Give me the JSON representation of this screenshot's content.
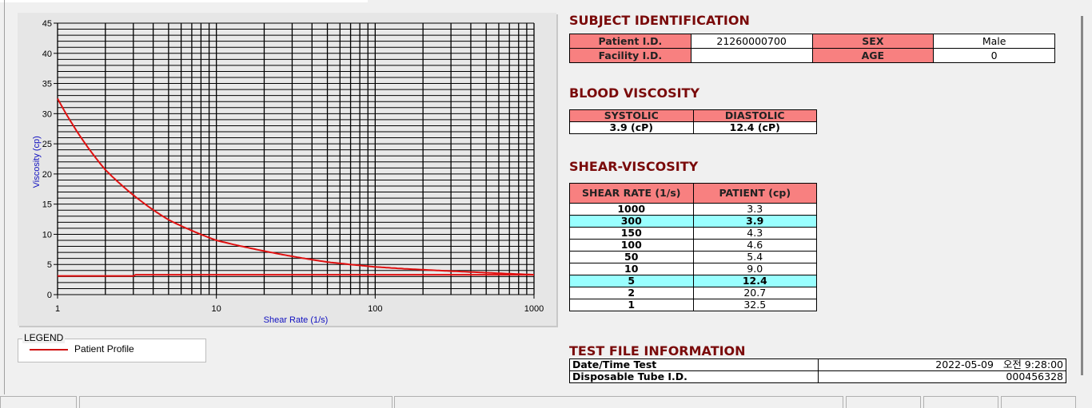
{
  "chart_data": {
    "type": "line",
    "xlabel": "Shear Rate (1/s)",
    "ylabel": "Viscosity (cp)",
    "xscale": "log",
    "xlim": [
      1,
      1000
    ],
    "ylim": [
      0,
      45
    ],
    "x_ticks": [
      "1",
      "10",
      "100",
      "1000"
    ],
    "y_ticks": [
      "0",
      "5",
      "10",
      "15",
      "20",
      "25",
      "30",
      "35",
      "40",
      "45"
    ],
    "grid": true,
    "legend_placement": "below",
    "series": [
      {
        "name": "Patient Profile",
        "color": "#e01010",
        "x": [
          1,
          2,
          5,
          10,
          50,
          100,
          150,
          300,
          1000
        ],
        "y": [
          32.5,
          20.7,
          12.4,
          9.0,
          5.4,
          4.6,
          4.3,
          3.9,
          3.3
        ]
      },
      {
        "color": "#e01010",
        "x": [
          1,
          3,
          3.1,
          1000
        ],
        "y": [
          3.1,
          3.1,
          3.3,
          3.3
        ]
      }
    ]
  },
  "legend": {
    "title": "LEGEND",
    "items": [
      {
        "label": "Patient Profile",
        "color": "#e01010"
      }
    ]
  },
  "subject": {
    "title": "SUBJECT IDENTIFICATION",
    "patient_id_label": "Patient I.D.",
    "patient_id": "21260000700",
    "sex_label": "SEX",
    "sex": "Male",
    "facility_id_label": "Facility I.D.",
    "facility_id": "",
    "age_label": "AGE",
    "age": "0"
  },
  "blood_viscosity": {
    "title": "BLOOD VISCOSITY",
    "systolic_label": "SYSTOLIC",
    "systolic": "3.9 (cP)",
    "diastolic_label": "DIASTOLIC",
    "diastolic": "12.4 (cP)"
  },
  "shear_viscosity": {
    "title": "SHEAR-VISCOSITY",
    "col1": "SHEAR RATE (1/s)",
    "col2": "PATIENT (cp)",
    "highlight_color": "#99ffff",
    "rows": [
      {
        "rate": "1000",
        "value": "3.3",
        "hl": false
      },
      {
        "rate": "300",
        "value": "3.9",
        "hl": true
      },
      {
        "rate": "150",
        "value": "4.3",
        "hl": false
      },
      {
        "rate": "100",
        "value": "4.6",
        "hl": false
      },
      {
        "rate": "50",
        "value": "5.4",
        "hl": false
      },
      {
        "rate": "10",
        "value": "9.0",
        "hl": false
      },
      {
        "rate": "5",
        "value": "12.4",
        "hl": true
      },
      {
        "rate": "2",
        "value": "20.7",
        "hl": false
      },
      {
        "rate": "1",
        "value": "32.5",
        "hl": false
      }
    ]
  },
  "test_file": {
    "title": "TEST FILE INFORMATION",
    "datetime_label": "Date/Time Test",
    "datetime": "2022-05-09   오전 9:28:00",
    "tube_label": "Disposable Tube I.D.",
    "tube": "000456328"
  },
  "colors": {
    "title": "#7a0a0a",
    "header_cell": "#f88080",
    "curve": "#e01010"
  }
}
